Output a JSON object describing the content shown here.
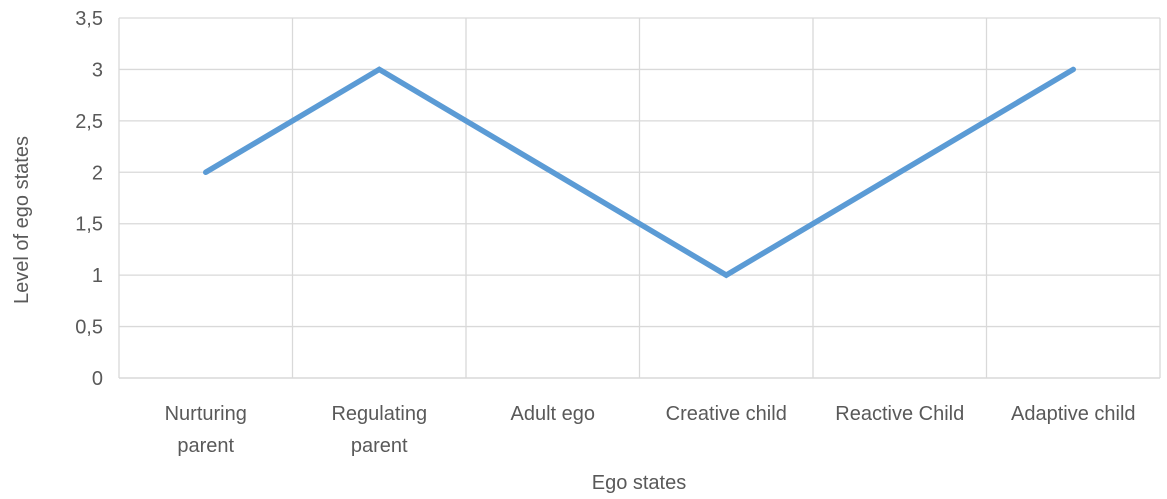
{
  "chart_data": {
    "type": "line",
    "categories": [
      [
        "Nurturing",
        "parent"
      ],
      [
        "Regulating",
        "parent"
      ],
      [
        "Adult ego"
      ],
      [
        "Creative child"
      ],
      [
        "Reactive Child"
      ],
      [
        "Adaptive child"
      ]
    ],
    "series": [
      {
        "values": [
          2,
          3,
          2,
          1,
          2,
          3
        ],
        "color": "#5b9bd5"
      }
    ],
    "xlabel": "Ego states",
    "ylabel": "Level of ego states",
    "ylim": [
      0,
      3.5
    ],
    "yticks": [
      "0",
      "0,5",
      "1",
      "1,5",
      "2",
      "2,5",
      "3",
      "3,5"
    ],
    "grid": true,
    "legend": "none"
  }
}
